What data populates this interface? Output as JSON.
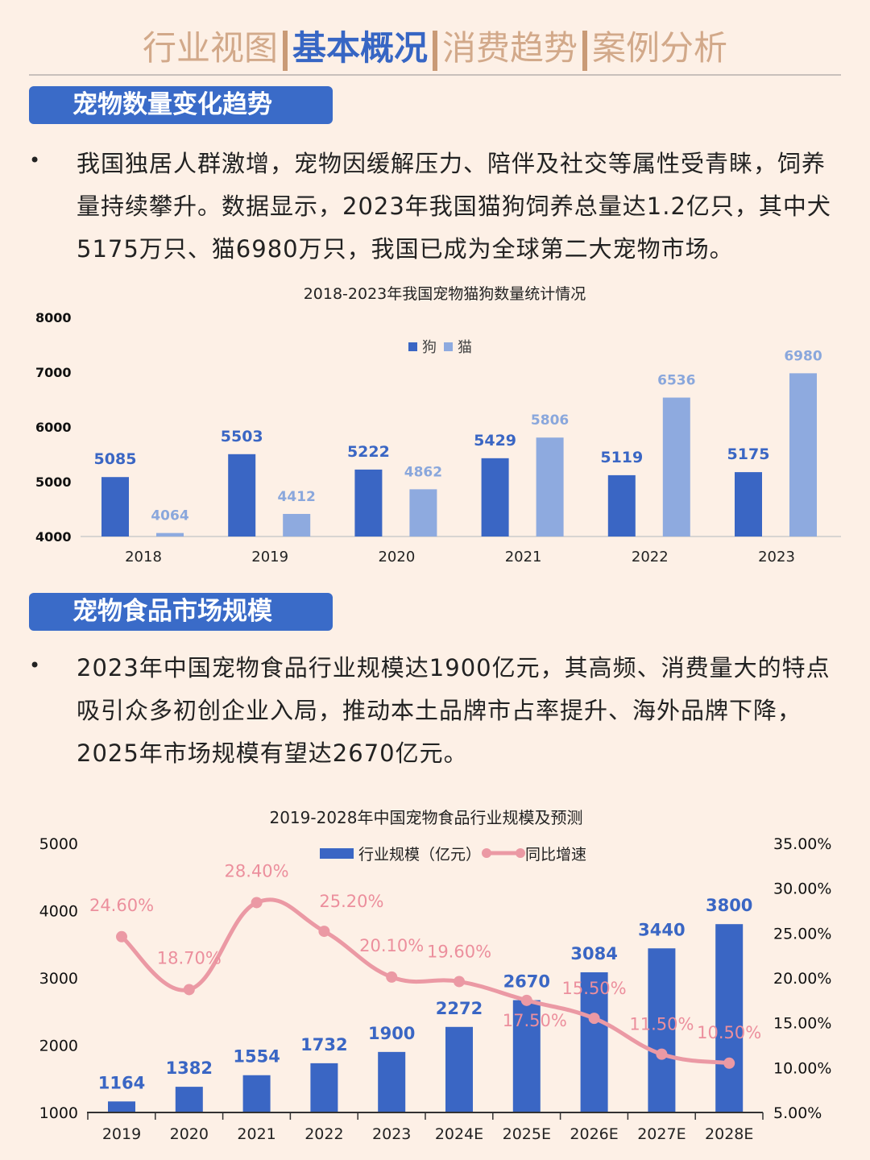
{
  "nav": {
    "tabs": [
      {
        "label": "行业视图",
        "active": false
      },
      {
        "label": "基本概况",
        "active": true
      },
      {
        "label": "消费趋势",
        "active": false
      },
      {
        "label": "案例分析",
        "active": false
      }
    ]
  },
  "section1": {
    "title": "宠物数量变化趋势",
    "bullet": "•",
    "text": "我国独居人群激增，宠物因缓解压力、陪伴及社交等属性受青睐，饲养量持续攀升。数据显示，2023年我国猫狗饲养总量达1.2亿只，其中犬5175万只、猫6980万只，我国已成为全球第二大宠物市场。"
  },
  "section2": {
    "title": "宠物食品市场规模",
    "bullet": "•",
    "text": "2023年中国宠物食品行业规模达1900亿元，其高频、消费量大的特点吸引众多初创企业入局，推动本土品牌市占率提升、海外品牌下降，2025年市场规模有望达2670亿元。"
  },
  "colors": {
    "accent": "#3a6bc8",
    "dog": "#3a66c4",
    "cat": "#8eaadf",
    "growth": "#eb99a4",
    "growth_label": "#ec8f9d",
    "tab_inactive": "#d2a98a"
  },
  "chart_data": [
    {
      "type": "bar",
      "title": "2018-2023年我国宠物猫狗数量统计情况",
      "categories": [
        "2018",
        "2019",
        "2020",
        "2021",
        "2022",
        "2023"
      ],
      "series": [
        {
          "name": "狗",
          "values": [
            5085,
            5503,
            5222,
            5429,
            5119,
            5175
          ]
        },
        {
          "name": "猫",
          "values": [
            4064,
            4412,
            4862,
            5806,
            6536,
            6980
          ]
        }
      ],
      "ylim": [
        4000,
        8000
      ],
      "yticks": [
        "4000",
        "5000",
        "6000",
        "7000",
        "8000"
      ],
      "legend": "top",
      "grid": false
    },
    {
      "type": "bar+line",
      "title": "2019-2028年中国宠物食品行业规模及预测",
      "categories": [
        "2019",
        "2020",
        "2021",
        "2022",
        "2023",
        "2024E",
        "2025E",
        "2026E",
        "2027E",
        "2028E"
      ],
      "series": [
        {
          "name": "行业规模（亿元）",
          "axis": "left",
          "values": [
            1164,
            1382,
            1554,
            1732,
            1900,
            2272,
            2670,
            3084,
            3440,
            3800
          ]
        },
        {
          "name": "同比增速",
          "axis": "right",
          "values": [
            24.6,
            18.7,
            28.4,
            25.2,
            20.1,
            19.6,
            17.5,
            15.5,
            11.5,
            10.5
          ],
          "labels": [
            "24.60%",
            "18.70%",
            "28.40%",
            "25.20%",
            "20.10%",
            "19.60%",
            "17.50%",
            "15.50%",
            "11.50%",
            "10.50%"
          ]
        }
      ],
      "ylim": [
        1000,
        5000
      ],
      "yticks": [
        "1000",
        "2000",
        "3000",
        "4000",
        "5000"
      ],
      "y2lim": [
        5,
        35
      ],
      "y2ticks": [
        "5.00%",
        "10.00%",
        "15.00%",
        "20.00%",
        "25.00%",
        "30.00%",
        "35.00%"
      ],
      "legend": "top",
      "grid": false
    }
  ]
}
